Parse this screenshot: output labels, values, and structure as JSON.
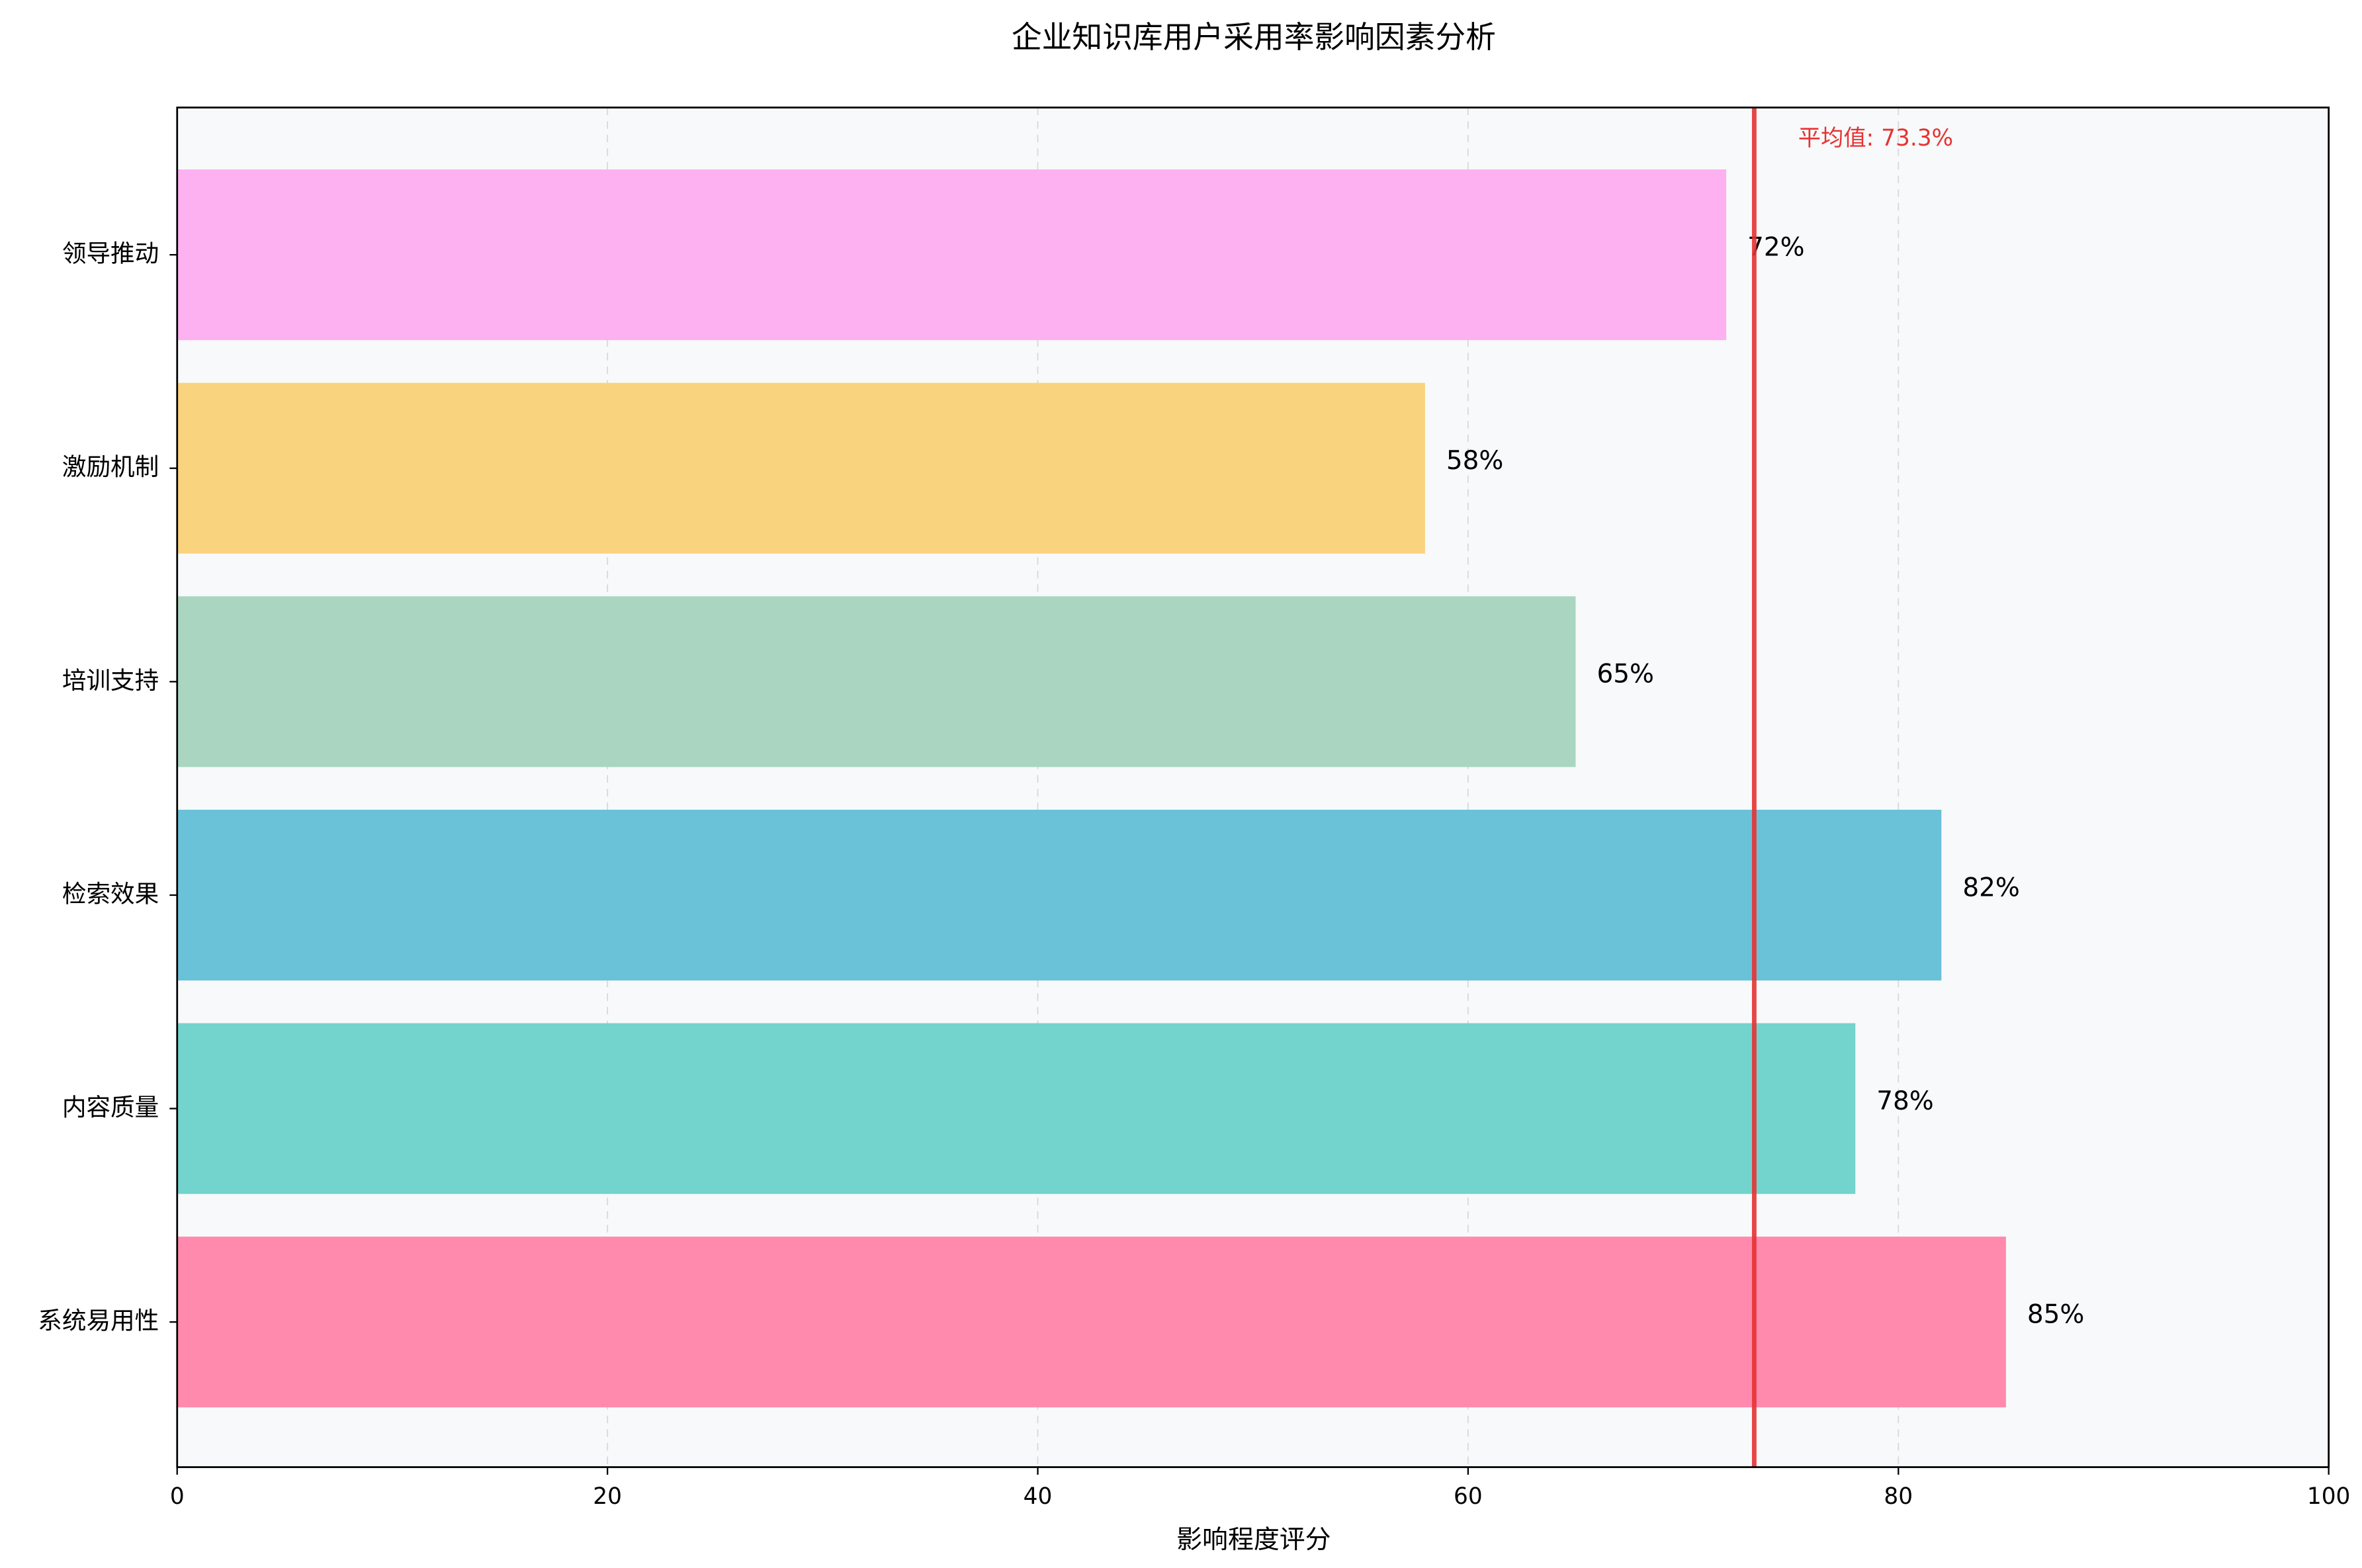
{
  "chart_data": {
    "type": "barh",
    "title": "企业知识库用户采用率影响因素分析",
    "x_label": "影响程度评分",
    "categories": [
      "系统易用性",
      "内容质量",
      "检索效果",
      "培训支持",
      "激励机制",
      "领导推动"
    ],
    "values": [
      85,
      78,
      82,
      65,
      58,
      72
    ],
    "value_labels": [
      "85%",
      "78%",
      "82%",
      "65%",
      "58%",
      "72%"
    ],
    "colors": [
      "#ff8aae",
      "#72d4cd",
      "#69c2d8",
      "#aad6c1",
      "#fad37e",
      "#fdb1f1"
    ],
    "xlim": [
      0,
      100
    ],
    "xticks": [
      0,
      20,
      40,
      60,
      80,
      100
    ],
    "grid": true,
    "mean_line": {
      "value": 73.3,
      "label": "平均值: 73.3%",
      "color": "#e63333"
    }
  }
}
